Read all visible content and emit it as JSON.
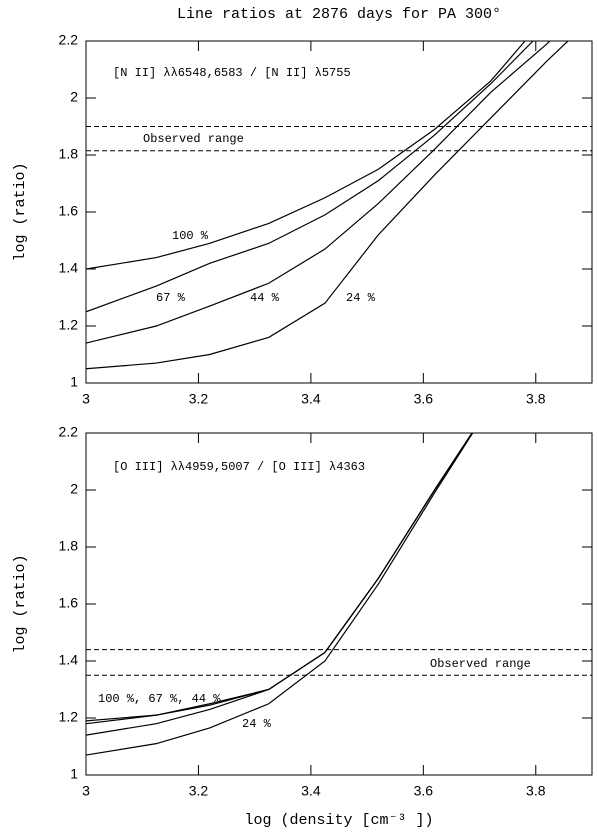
{
  "chart_data": [
    {
      "type": "line",
      "title": "Line ratios at 2876 days for PA 300°",
      "ylabel": "log (ratio)",
      "panel_label": "[N II] λλ6548,6583 / [N II] λ5755",
      "x": [
        3,
        3.125,
        3.22,
        3.325,
        3.425,
        3.52,
        3.62,
        3.72,
        3.82,
        3.9
      ],
      "series": [
        {
          "color": "#000000",
          "values": [
            1.4,
            1.44,
            1.49,
            1.56,
            1.65,
            1.75,
            1.89,
            2.06,
            2.29,
            2.45
          ]
        },
        {
          "color": "#000000",
          "values": [
            1.25,
            1.34,
            1.42,
            1.49,
            1.59,
            1.71,
            1.87,
            2.05,
            2.25,
            2.42
          ]
        },
        {
          "color": "#000000",
          "values": [
            1.14,
            1.2,
            1.27,
            1.35,
            1.47,
            1.63,
            1.82,
            2.02,
            2.19,
            2.35
          ]
        },
        {
          "color": "#000000",
          "values": [
            1.05,
            1.07,
            1.1,
            1.16,
            1.28,
            1.52,
            1.73,
            1.93,
            2.13,
            2.28
          ]
        }
      ],
      "curve_labels": [
        "100 %",
        "67 %",
        "44 %",
        "24 %"
      ],
      "hlines": [
        1.9,
        1.815
      ],
      "hline_label": "Observed range",
      "xlim": [
        3,
        3.9
      ],
      "ylim": [
        1,
        2.2
      ],
      "xticks": [
        3,
        3.2,
        3.4,
        3.6,
        3.8
      ],
      "yticks": [
        1,
        1.2,
        1.4,
        1.6,
        1.8,
        2,
        2.2
      ]
    },
    {
      "type": "line",
      "ylabel": "log (ratio)",
      "xlabel": "log (density [cm⁻³ ])",
      "panel_label": "[O III] λλ4959,5007 / [O III] λ4363",
      "x": [
        3,
        3.125,
        3.22,
        3.325,
        3.425,
        3.52,
        3.62,
        3.72
      ],
      "series": [
        {
          "color": "#000000",
          "values": [
            1.19,
            1.21,
            1.25,
            1.3,
            1.43,
            1.69,
            2.0,
            2.3
          ]
        },
        {
          "color": "#000000",
          "values": [
            1.18,
            1.21,
            1.245,
            1.3,
            1.43,
            1.69,
            2.0,
            2.3
          ]
        },
        {
          "color": "#000000",
          "values": [
            1.14,
            1.18,
            1.23,
            1.3,
            1.43,
            1.69,
            2.0,
            2.3
          ]
        },
        {
          "color": "#000000",
          "values": [
            1.07,
            1.11,
            1.165,
            1.25,
            1.4,
            1.67,
            1.99,
            2.3
          ]
        }
      ],
      "curve_labels": [
        "100 %, 67 %, 44 %",
        "24 %"
      ],
      "hlines": [
        1.44,
        1.35
      ],
      "hline_label": "Observed range",
      "xlim": [
        3,
        3.9
      ],
      "ylim": [
        1,
        2.2
      ],
      "xticks": [
        3,
        3.2,
        3.4,
        3.6,
        3.8
      ],
      "yticks": [
        1,
        1.2,
        1.4,
        1.6,
        1.8,
        2,
        2.2
      ]
    }
  ]
}
